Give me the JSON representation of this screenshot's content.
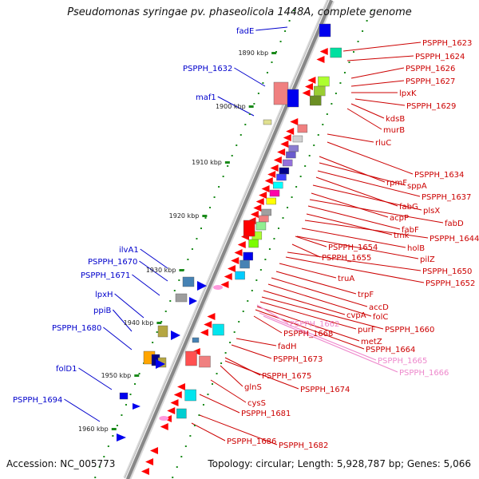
{
  "header": {
    "title": "Pseudomonas syringae pv. phaseolicola 1448A, complete genome"
  },
  "footer": {
    "accession": "Accession: NC_005773",
    "summary": "Topology: circular; Length: 5,928,787 bp; Genes: 5,066"
  },
  "colors": {
    "left_label": "#0000cc",
    "right_label": "#cc0000",
    "pink_label": "#ee88cc",
    "backbone": "#888888",
    "tick_dot": "#1a8a1a"
  },
  "scale_labels": [
    "1890 kbp",
    "1900 kbp",
    "1910 kbp",
    "1920 kbp",
    "1930 kbp",
    "1940 kbp",
    "1950 kbp",
    "1960 kbp"
  ],
  "left_labels": [
    "fadE",
    "PSPPH_1632",
    "maf1",
    "ilvA1",
    "PSPPH_1670",
    "PSPPH_1671",
    "lpxH",
    "ppiB",
    "PSPPH_1680",
    "folD1",
    "PSPPH_1694"
  ],
  "right_labels": [
    "PSPPH_1623",
    "PSPPH_1624",
    "PSPPH_1626",
    "PSPPH_1627",
    "lpxK",
    "PSPPH_1629",
    "kdsB",
    "murB",
    "rluC",
    "PSPPH_1634",
    "rpmF",
    "sppA",
    "PSPPH_1637",
    "fabG",
    "plsX",
    "acpP",
    "fabD",
    "fabF",
    "tmk",
    "PSPPH_1644",
    "holB",
    "PSPPH_1654",
    "PSPPH_1655",
    "pilZ",
    "PSPPH_1650",
    "PSPPH_1652",
    "truA",
    "trpF",
    "accD",
    "folC",
    "cvpA",
    "PSPPH_1660",
    "purF",
    "metZ",
    "PSPPH_1668",
    "PSPPH_1664",
    "fadH",
    "PSPPH_1673",
    "PSPPH_1675",
    "glnS",
    "PSPPH_1674",
    "cysS",
    "PSPPH_1681",
    "PSPPH_1686",
    "PSPPH_1682"
  ],
  "pink_labels": [
    "PSPPH_1662",
    "PSPPH_1665",
    "PSPPH_1666"
  ]
}
